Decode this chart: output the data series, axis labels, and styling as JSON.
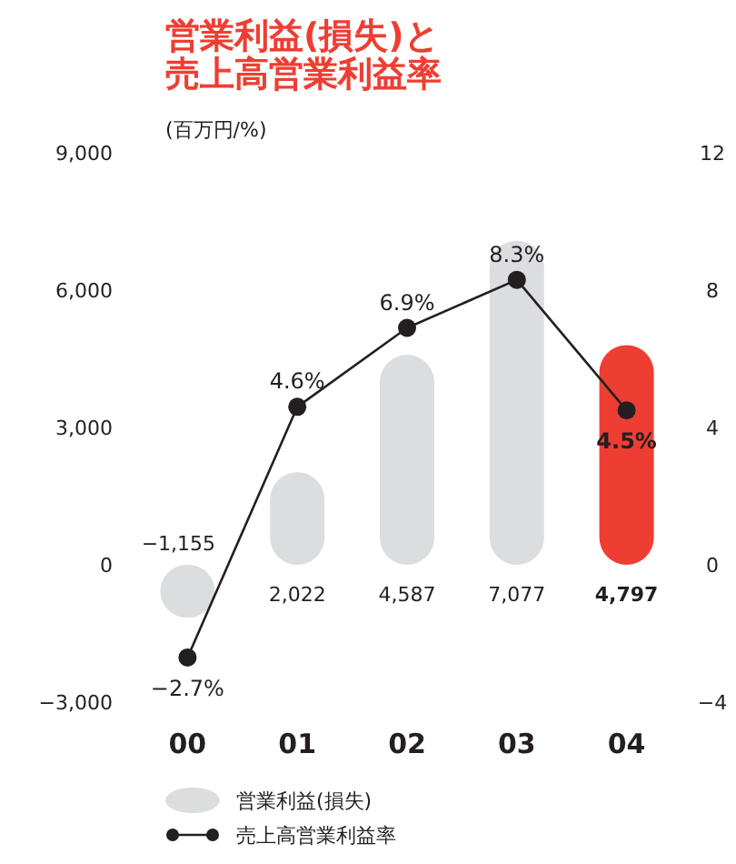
{
  "chart_data": {
    "type": "bar",
    "title": "営業利益(損失)と売上高営業利益率",
    "subtitle": "(百万円/%)",
    "categories": [
      "00",
      "01",
      "02",
      "03",
      "04"
    ],
    "series": [
      {
        "name": "営業利益(損失)",
        "color": "#dcdddf",
        "colors": [
          "#dcdddf",
          "#dcdddf",
          "#dcdddf",
          "#dcdddf",
          "#ee3e33"
        ],
        "values": [
          -1155,
          2022,
          4587,
          7077,
          4797
        ],
        "value_labels": [
          "−1,155",
          "2,022",
          "4,587",
          "7,077",
          "4,797"
        ]
      },
      {
        "type": "line",
        "name": "売上高営業利益率",
        "color": "#231f20",
        "axis": "y2",
        "marker": "circle",
        "values": [
          -2.7,
          4.6,
          6.9,
          8.3,
          4.5
        ],
        "value_labels": [
          "−2.7%",
          "4.6%",
          "6.9%",
          "8.3%",
          "4.5%"
        ]
      }
    ],
    "ylim": [
      -3000,
      9000
    ],
    "yticks": [
      {
        "value": -3000,
        "label": "−3,000"
      },
      0,
      {
        "value": 3000,
        "label": "3,000"
      },
      {
        "value": 6000,
        "label": "6,000"
      },
      {
        "value": 9000,
        "label": "9,000"
      }
    ],
    "y2lim": [
      -4,
      12
    ],
    "y2ticks": [
      {
        "value": -4,
        "label": "−4"
      },
      0,
      4,
      8,
      12
    ],
    "legend": "bottom left",
    "grid": false
  }
}
